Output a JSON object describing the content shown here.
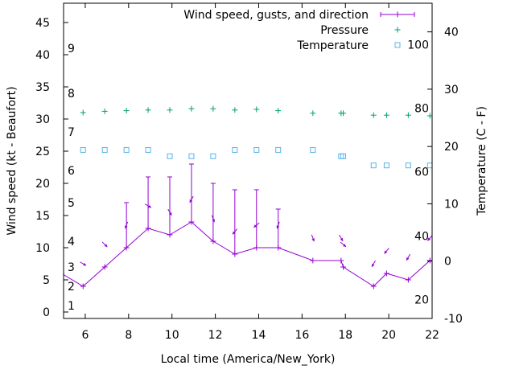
{
  "chart_data": {
    "type": "line",
    "xlabel": "Local time (America/New_York)",
    "ylabel_left": "Wind speed (kt - Beaufort)",
    "ylabel_right": "Temperature (C - F)",
    "xlim": [
      5,
      22
    ],
    "ylim_left": [
      -1,
      48
    ],
    "ylim_right": [
      -10,
      45
    ],
    "x_ticks": [
      6,
      8,
      10,
      12,
      14,
      16,
      18,
      20,
      22
    ],
    "y_ticks_left": [
      0,
      5,
      10,
      15,
      20,
      25,
      30,
      35,
      40,
      45
    ],
    "y_ticks_right": [
      -10,
      0,
      10,
      20,
      30,
      40
    ],
    "legend_position": "top-right",
    "grid": false,
    "beaufort_labels": [
      {
        "label": "1",
        "kt": 1
      },
      {
        "label": "2",
        "kt": 4
      },
      {
        "label": "3",
        "kt": 7
      },
      {
        "label": "4",
        "kt": 11
      },
      {
        "label": "5",
        "kt": 17
      },
      {
        "label": "6",
        "kt": 22
      },
      {
        "label": "7",
        "kt": 28
      },
      {
        "label": "8",
        "kt": 34
      },
      {
        "label": "9",
        "kt": 41
      }
    ],
    "fahrenheit_labels": [
      {
        "label": "20",
        "c": -6.7
      },
      {
        "label": "40",
        "c": 4.4
      },
      {
        "label": "60",
        "c": 15.6
      },
      {
        "label": "80",
        "c": 26.7
      },
      {
        "label": "100",
        "c": 37.8
      }
    ],
    "series": [
      {
        "name": "Wind speed, gusts, and direction",
        "style": "line-points-errorbars",
        "color": "#9400d3",
        "x": [
          4.9,
          5.9,
          6.9,
          7.9,
          8.9,
          9.9,
          10.9,
          11.9,
          12.9,
          13.9,
          14.9,
          16.5,
          17.8,
          17.9,
          19.3,
          19.9,
          20.9,
          21.9,
          22.2
        ],
        "y": [
          6,
          4,
          7,
          10,
          13,
          12,
          14,
          11,
          9,
          10,
          10,
          8,
          8,
          7,
          4,
          6,
          5,
          8,
          8
        ],
        "gust": [
          null,
          null,
          null,
          17,
          21,
          21,
          23,
          20,
          19,
          19,
          16,
          null,
          null,
          null,
          null,
          null,
          null,
          null,
          null
        ],
        "direction_deg": [
          null,
          300,
          315,
          20,
          300,
          330,
          30,
          340,
          40,
          50,
          20,
          340,
          330,
          310,
          30,
          40,
          30,
          40,
          null
        ]
      },
      {
        "name": "Pressure",
        "style": "points",
        "marker": "plus",
        "color": "#009e73",
        "x": [
          5.9,
          6.9,
          7.9,
          8.9,
          9.9,
          10.9,
          11.9,
          12.9,
          13.9,
          14.9,
          16.5,
          17.8,
          17.9,
          19.3,
          19.9,
          20.9,
          21.9
        ],
        "y": [
          31.0,
          31.2,
          31.3,
          31.4,
          31.4,
          31.6,
          31.6,
          31.4,
          31.5,
          31.3,
          30.9,
          30.9,
          30.9,
          30.6,
          30.6,
          30.6,
          30.5
        ]
      },
      {
        "name": "Temperature",
        "style": "points",
        "marker": "square",
        "color": "#56b4e9",
        "x": [
          5.9,
          6.9,
          7.9,
          8.9,
          9.9,
          10.9,
          11.9,
          12.9,
          13.9,
          14.9,
          16.5,
          17.8,
          17.9,
          19.3,
          19.9,
          20.9,
          21.9
        ],
        "y": [
          19.4,
          19.4,
          19.4,
          19.4,
          18.3,
          18.3,
          18.3,
          19.4,
          19.4,
          19.4,
          19.4,
          18.3,
          18.3,
          16.7,
          16.7,
          16.7,
          16.7
        ]
      }
    ]
  }
}
